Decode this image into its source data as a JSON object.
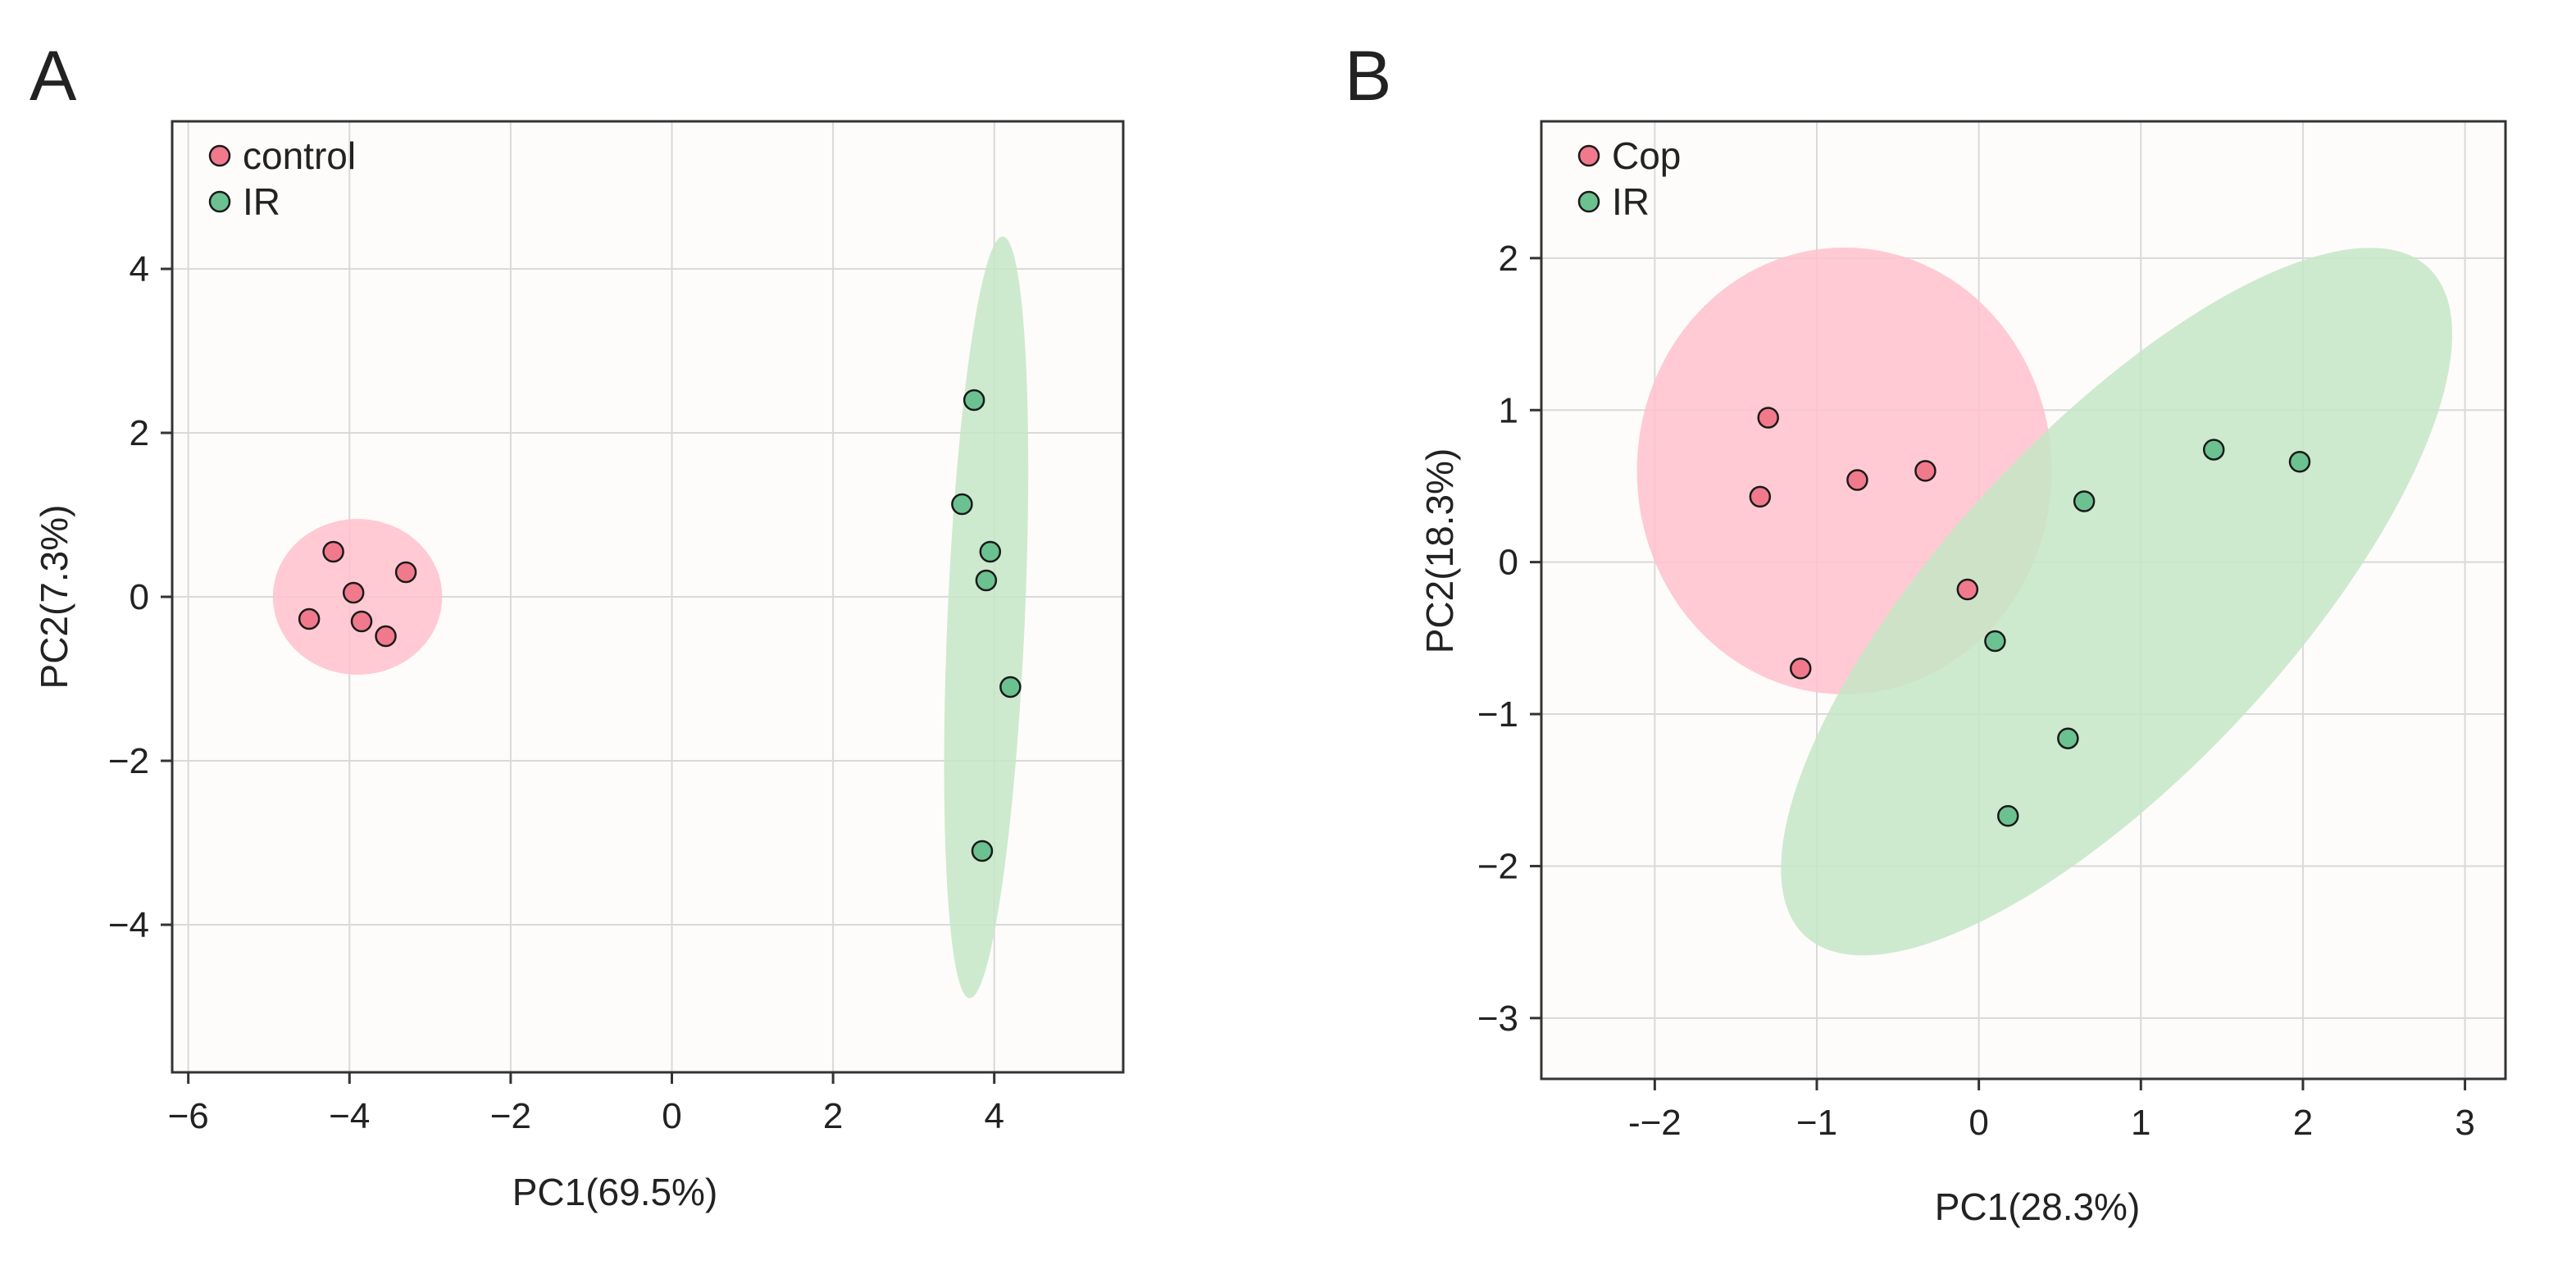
{
  "figure": {
    "background": "#ffffff",
    "plot_background": "#fdfcfa",
    "grid_color": "#d9d9d9",
    "group_colors": {
      "pink_point": "#f07a8c",
      "pink_ellipse": "#ffc1cb",
      "green_point": "#6cc190",
      "green_ellipse": "#c5e6c5"
    }
  },
  "chart_data": [
    {
      "type": "scatter",
      "panel_label": "A",
      "xlabel": "PC1(69.5%)",
      "ylabel": "PC2(7.3%)",
      "xlim": [
        -6.2,
        5.6
      ],
      "ylim": [
        -5.8,
        5.8
      ],
      "xticks": [
        -6,
        -4,
        -2,
        0,
        2,
        4
      ],
      "xtick_labels": [
        "−6",
        "−4",
        "−2",
        "0",
        "2",
        "4"
      ],
      "yticks": [
        -4,
        -2,
        0,
        2,
        4
      ],
      "ytick_labels": [
        "−4",
        "−2",
        "0",
        "2",
        "4"
      ],
      "grid": true,
      "legend_position": "top-left",
      "series": [
        {
          "name": "control",
          "color": "#f07a8c",
          "ellipse_color": "#ffc1cb",
          "ellipse": {
            "cx": -3.9,
            "cy": 0.0,
            "rx": 1.05,
            "ry": 0.95,
            "angle_deg": 0
          },
          "points": [
            [
              -4.2,
              0.55
            ],
            [
              -3.3,
              0.3
            ],
            [
              -3.95,
              0.05
            ],
            [
              -4.5,
              -0.27
            ],
            [
              -3.85,
              -0.3
            ],
            [
              -3.55,
              -0.48
            ]
          ]
        },
        {
          "name": "IR",
          "color": "#6cc190",
          "ellipse_color": "#c5e6c5",
          "ellipse": {
            "cx": 3.9,
            "cy": -0.25,
            "rx": 0.48,
            "ry": 4.65,
            "angle_deg": -2.5
          },
          "points": [
            [
              3.75,
              2.4
            ],
            [
              3.6,
              1.13
            ],
            [
              3.95,
              0.55
            ],
            [
              3.9,
              0.2
            ],
            [
              4.2,
              -1.1
            ],
            [
              3.85,
              -3.1
            ]
          ]
        }
      ]
    },
    {
      "type": "scatter",
      "panel_label": "B",
      "xlabel": "PC1(28.3%)",
      "ylabel": "PC2(18.3%)",
      "xlim": [
        -2.7,
        3.25
      ],
      "ylim": [
        -3.4,
        2.9
      ],
      "xticks": [
        -2,
        -1,
        0,
        1,
        2,
        3
      ],
      "xtick_labels": [
        "-−2",
        "−1",
        "0",
        "1",
        "2",
        "3"
      ],
      "yticks": [
        -3,
        -2,
        -1,
        0,
        1,
        2
      ],
      "ytick_labels": [
        "−3",
        "−2",
        "−1",
        "0",
        "1",
        "2"
      ],
      "grid": true,
      "legend_position": "top-left",
      "series": [
        {
          "name": "Cop",
          "color": "#f07a8c",
          "ellipse_color": "#ffc1cb",
          "ellipse": {
            "cx": -0.83,
            "cy": 0.6,
            "rx": 1.28,
            "ry": 1.47,
            "angle_deg": 0
          },
          "points": [
            [
              -1.3,
              0.95
            ],
            [
              -1.35,
              0.43
            ],
            [
              -0.75,
              0.54
            ],
            [
              -0.33,
              0.6
            ],
            [
              -0.07,
              -0.18
            ],
            [
              -1.1,
              -0.7
            ]
          ]
        },
        {
          "name": "IR",
          "color": "#6cc190",
          "ellipse_color": "#c5e6c5",
          "ellipse": {
            "cx": 0.85,
            "cy": -0.26,
            "rx": 2.82,
            "ry": 1.12,
            "angle_deg": 47
          },
          "points": [
            [
              0.65,
              0.4
            ],
            [
              1.45,
              0.74
            ],
            [
              1.98,
              0.66
            ],
            [
              0.1,
              -0.52
            ],
            [
              0.55,
              -1.16
            ],
            [
              0.18,
              -1.67
            ]
          ]
        }
      ]
    }
  ]
}
